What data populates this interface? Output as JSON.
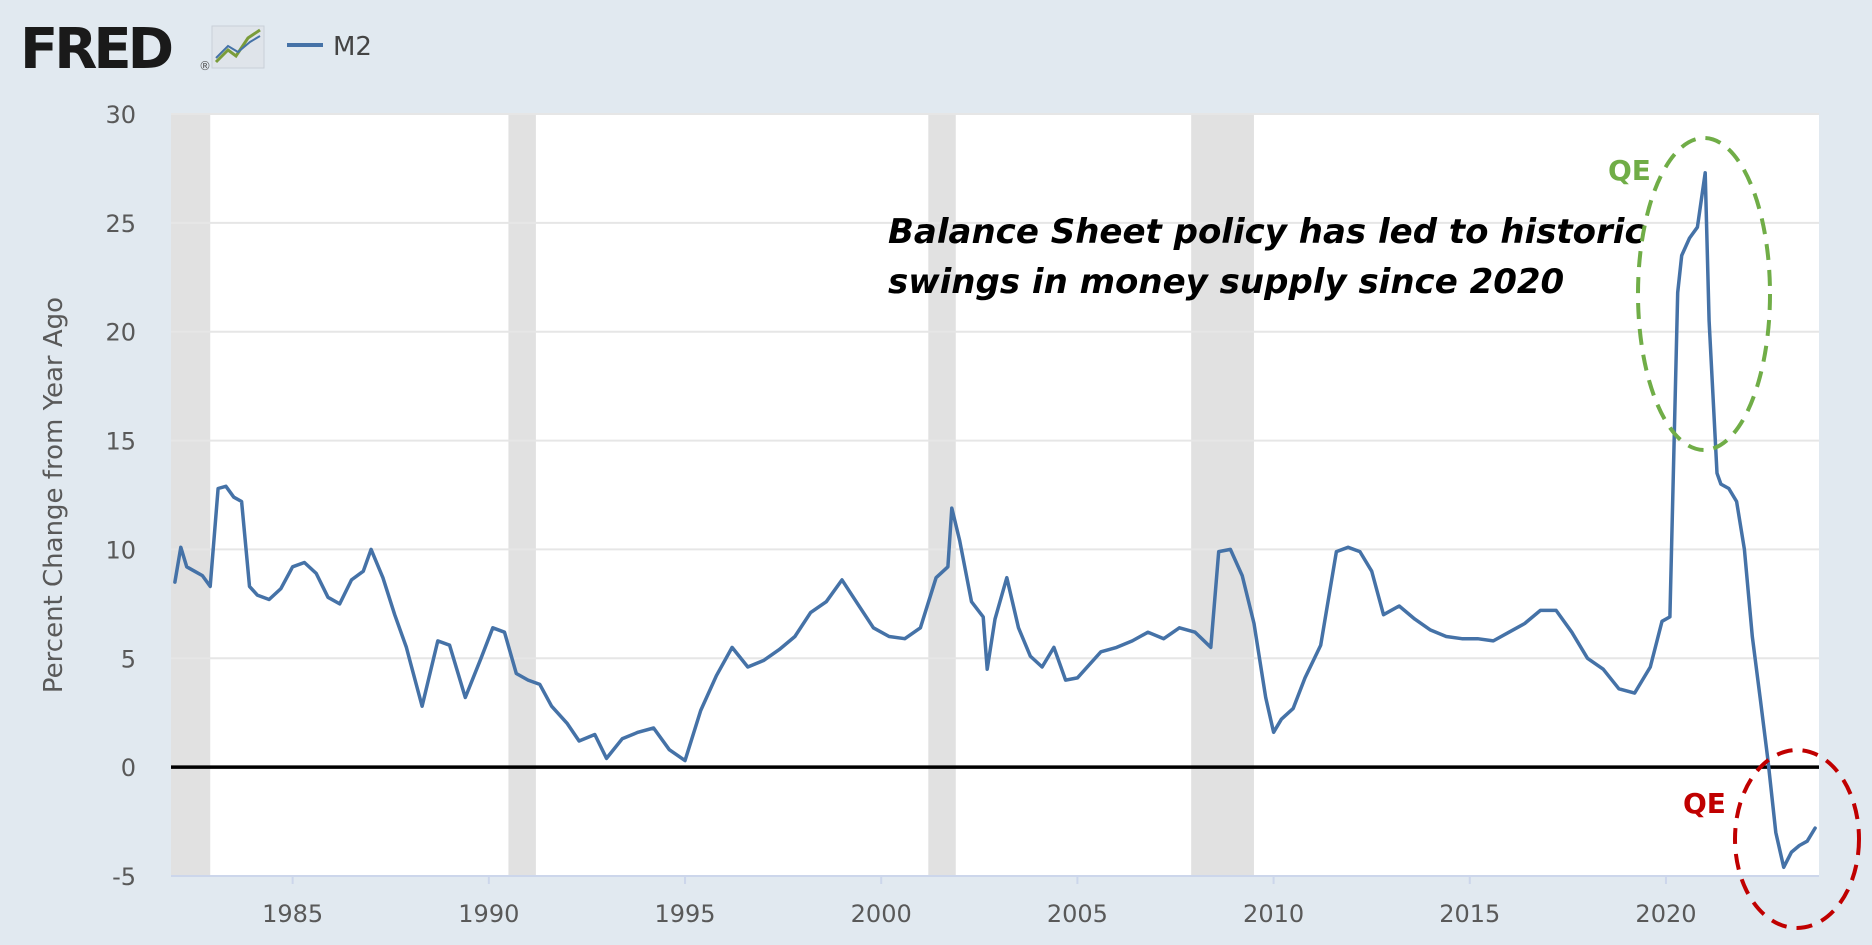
{
  "header": {
    "logo_text": "FRED",
    "logo_mark": "®",
    "logo_icon": "line-chart-icon",
    "legend_label": "M2"
  },
  "colors": {
    "background": "#e1e9f0",
    "plot_bg": "#ffffff",
    "series": "#4572a7",
    "recession": "#e1e1e1",
    "zero_line": "#000000",
    "qe_up": "#70ad47",
    "qe_down": "#c00000"
  },
  "annotations": {
    "note_line1": "Balance Sheet policy has led to historic",
    "note_line2": "swings in money supply since 2020",
    "qe_top": "QE",
    "qe_bottom": "QE"
  },
  "chart_data": {
    "type": "line",
    "title": "",
    "xlabel": "",
    "ylabel": "Percent Change from Year Ago",
    "xlim": [
      1981.9,
      2023.9
    ],
    "ylim": [
      -5,
      30
    ],
    "yticks": [
      -5,
      0,
      5,
      10,
      15,
      20,
      25,
      30
    ],
    "yticks_labels": [
      "-5",
      "0",
      "5",
      "10",
      "15",
      "20",
      "25",
      "30"
    ],
    "xticks": [
      1985,
      1990,
      1995,
      2000,
      2005,
      2010,
      2015,
      2020
    ],
    "xticks_labels": [
      "1985",
      "1990",
      "1995",
      "2000",
      "2005",
      "2010",
      "2015",
      "2020"
    ],
    "grid": true,
    "legend_position": "top-left",
    "recessions": [
      [
        1981.9,
        1982.9
      ],
      [
        1990.5,
        1991.2
      ],
      [
        2001.2,
        2001.9
      ],
      [
        2007.9,
        2009.5
      ]
    ],
    "reference_line": 0,
    "series": [
      {
        "name": "M2",
        "x": [
          1982.0,
          1982.15,
          1982.3,
          1982.5,
          1982.7,
          1982.9,
          1983.1,
          1983.3,
          1983.5,
          1983.7,
          1983.9,
          1984.1,
          1984.4,
          1984.7,
          1985.0,
          1985.3,
          1985.6,
          1985.9,
          1986.2,
          1986.5,
          1986.8,
          1987.0,
          1987.3,
          1987.6,
          1987.9,
          1988.0,
          1988.3,
          1988.7,
          1989.0,
          1989.4,
          1989.8,
          1990.1,
          1990.4,
          1990.7,
          1991.0,
          1991.3,
          1991.6,
          1992.0,
          1992.3,
          1992.7,
          1993.0,
          1993.4,
          1993.8,
          1994.2,
          1994.6,
          1995.0,
          1995.4,
          1995.8,
          1996.2,
          1996.6,
          1997.0,
          1997.4,
          1997.8,
          1998.2,
          1998.6,
          1999.0,
          1999.4,
          1999.8,
          2000.2,
          2000.6,
          2001.0,
          2001.4,
          2001.7,
          2001.8,
          2002.0,
          2002.3,
          2002.6,
          2002.7,
          2002.9,
          2003.2,
          2003.5,
          2003.8,
          2004.1,
          2004.4,
          2004.7,
          2005.0,
          2005.3,
          2005.6,
          2006.0,
          2006.4,
          2006.8,
          2007.2,
          2007.6,
          2008.0,
          2008.4,
          2008.6,
          2008.9,
          2009.2,
          2009.5,
          2009.8,
          2010.0,
          2010.2,
          2010.5,
          2010.8,
          2011.2,
          2011.6,
          2011.9,
          2012.2,
          2012.5,
          2012.8,
          2013.2,
          2013.6,
          2014.0,
          2014.4,
          2014.8,
          2015.2,
          2015.6,
          2016.0,
          2016.4,
          2016.8,
          2017.2,
          2017.6,
          2018.0,
          2018.4,
          2018.8,
          2019.2,
          2019.6,
          2019.9,
          2020.1,
          2020.3,
          2020.4,
          2020.6,
          2020.8,
          2021.0,
          2021.1,
          2021.3,
          2021.4,
          2021.6,
          2021.8,
          2022.0,
          2022.2,
          2022.4,
          2022.6,
          2022.8,
          2023.0,
          2023.2,
          2023.4,
          2023.6,
          2023.8
        ],
        "values": [
          8.5,
          10.1,
          9.2,
          9.0,
          8.8,
          8.3,
          12.8,
          12.9,
          12.4,
          12.2,
          8.3,
          7.9,
          7.7,
          8.2,
          9.2,
          9.4,
          8.9,
          7.8,
          7.5,
          8.6,
          9.0,
          10.0,
          8.7,
          7.0,
          5.5,
          4.8,
          2.8,
          5.8,
          5.6,
          3.2,
          5.0,
          6.4,
          6.2,
          4.3,
          4.0,
          3.8,
          2.8,
          2.0,
          1.2,
          1.5,
          0.4,
          1.3,
          1.6,
          1.8,
          0.8,
          0.3,
          2.6,
          4.2,
          5.5,
          4.6,
          4.9,
          5.4,
          6.0,
          7.1,
          7.6,
          8.6,
          7.5,
          6.4,
          6.0,
          5.9,
          6.4,
          8.7,
          9.2,
          11.9,
          10.4,
          7.6,
          6.9,
          4.5,
          6.8,
          8.7,
          6.4,
          5.1,
          4.6,
          5.5,
          4.0,
          4.1,
          4.7,
          5.3,
          5.5,
          5.8,
          6.2,
          5.9,
          6.4,
          6.2,
          5.5,
          9.9,
          10.0,
          8.8,
          6.6,
          3.2,
          1.6,
          2.2,
          2.7,
          4.1,
          5.6,
          9.9,
          10.1,
          9.9,
          9.0,
          7.0,
          7.4,
          6.8,
          6.3,
          6.0,
          5.9,
          5.9,
          5.8,
          6.2,
          6.6,
          7.2,
          7.2,
          6.2,
          5.0,
          4.5,
          3.6,
          3.4,
          4.6,
          6.7,
          6.9,
          21.8,
          23.5,
          24.3,
          24.8,
          27.3,
          20.5,
          13.5,
          13.0,
          12.8,
          12.2,
          10.0,
          6.0,
          3.2,
          0.3,
          -3.0,
          -4.6,
          -3.9,
          -3.6,
          -3.4,
          -2.8
        ]
      }
    ]
  }
}
